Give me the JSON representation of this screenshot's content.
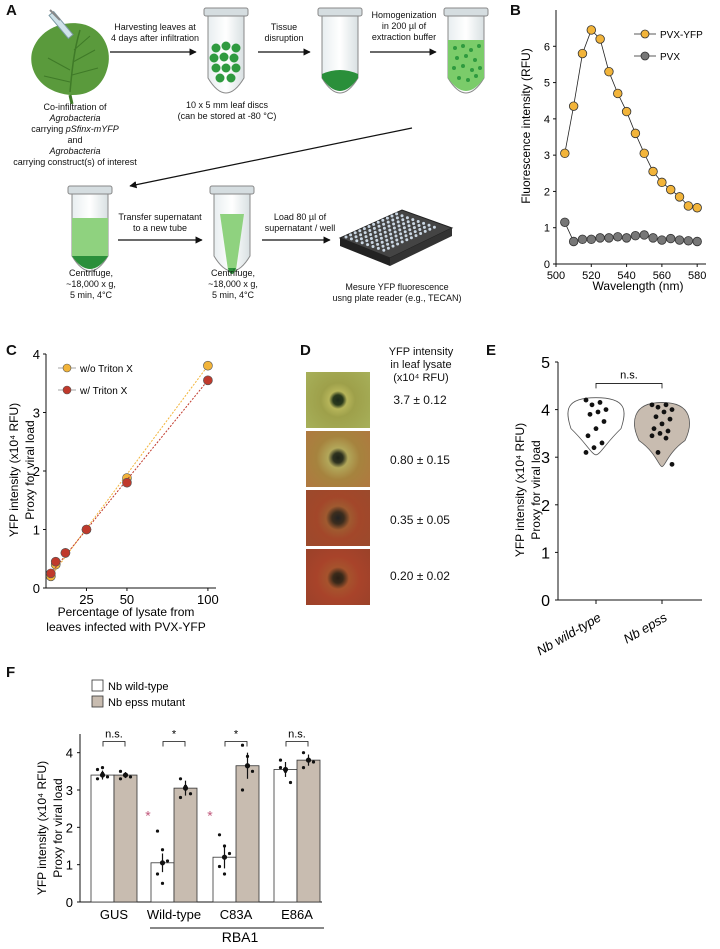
{
  "panels": {
    "a": "A",
    "b": "B",
    "c": "C",
    "d": "D",
    "e": "E",
    "f": "F"
  },
  "a": {
    "leaf_caption": [
      "Co-infiltration of",
      "Agrobacteria",
      "carrying",
      "pSfinx-mYFP",
      "and",
      "Agrobacteria",
      "carrying construct(s) of interest"
    ],
    "step1": [
      "Harvesting leaves at",
      "4 days after infiltration"
    ],
    "tube1_caption": [
      "10 x 5 mm leaf discs",
      "(can be stored at -80 °C)"
    ],
    "step2": [
      "Tissue",
      "disruption"
    ],
    "step3": [
      "Homogenization",
      "in 200 µl of",
      "extraction buffer"
    ],
    "centrifuge": [
      "Centrifuge,",
      "~18,000 x g,",
      "5 min, 4°C"
    ],
    "step4": [
      "Transfer supernatant",
      "to a new tube"
    ],
    "step5": [
      "Load 80 µl of",
      "supernatant / well"
    ],
    "plate_caption": [
      "Mesure YFP fluorescence",
      "usng plate reader (e.g., TECAN)"
    ]
  },
  "b": {
    "ylabel": "Fluorescence intensity (RFU)",
    "xlabel": "Wavelength (nm)",
    "legend": [
      "PVX-YFP",
      "PVX"
    ],
    "yticks": [
      "0",
      "1",
      "2",
      "3",
      "4",
      "5",
      "6"
    ],
    "xticks": [
      "500",
      "520",
      "540",
      "560",
      "580"
    ]
  },
  "c": {
    "ylabel1": "YFP  intensity  (x10⁴ RFU)",
    "ylabel2": "Proxy for viral load",
    "xlabel1": "Percentage of lysate from",
    "xlabel2": "leaves infected with PVX-YFP",
    "legend": [
      "w/o Triton X",
      "w/  Triton X"
    ],
    "yticks": [
      "0",
      "1",
      "2",
      "3",
      "4"
    ],
    "xticks": [
      "25",
      "50",
      "100"
    ]
  },
  "d": {
    "header": [
      "YFP intensity",
      "in leaf lysate",
      "(x10⁴ RFU)"
    ],
    "values": [
      "3.7  ± 0.12",
      "0.80 ±  0.15",
      "0.35 ± 0.05",
      "0.20 ± 0.02"
    ]
  },
  "e": {
    "ylabel1": "YFP  intensity  (x10⁴ RFU)",
    "ylabel2": "Proxy for viral load",
    "yticks": [
      "0",
      "1",
      "2",
      "3",
      "4",
      "5"
    ],
    "xticks": [
      "Nb wild-type",
      "Nb epss"
    ],
    "sig": "n.s."
  },
  "f": {
    "legend": [
      "Nb wild-type",
      "Nb epss mutant"
    ],
    "ylabel1": "YFP  intensity (x10⁴ RFU)",
    "ylabel2": "Proxy for viral load",
    "yticks": [
      "0",
      "1",
      "2",
      "3",
      "4"
    ],
    "groups": [
      "GUS",
      "Wild-type",
      "C83A",
      "E86A"
    ],
    "sig": [
      "n.s.",
      "*",
      "*",
      "n.s."
    ],
    "group_label": "RBA1"
  },
  "chart_data": [
    {
      "type": "line",
      "xlabel": "Wavelength (nm)",
      "ylabel": "Fluorescence intensity (RFU)",
      "xlim": [
        500,
        585
      ],
      "ylim": [
        0,
        7
      ],
      "series": [
        {
          "name": "PVX-YFP",
          "color": "#f2b43a",
          "x": [
            505,
            510,
            515,
            520,
            525,
            530,
            535,
            540,
            545,
            550,
            555,
            560,
            565,
            570,
            575,
            580
          ],
          "y": [
            3.05,
            4.35,
            5.8,
            6.45,
            6.2,
            5.3,
            4.7,
            4.2,
            3.6,
            3.05,
            2.55,
            2.25,
            2.05,
            1.85,
            1.6,
            1.55
          ]
        },
        {
          "name": "PVX",
          "color": "#777777",
          "x": [
            505,
            510,
            515,
            520,
            525,
            530,
            535,
            540,
            545,
            550,
            555,
            560,
            565,
            570,
            575,
            580
          ],
          "y": [
            1.15,
            0.62,
            0.68,
            0.68,
            0.72,
            0.72,
            0.75,
            0.72,
            0.78,
            0.8,
            0.72,
            0.66,
            0.7,
            0.66,
            0.64,
            0.62
          ]
        }
      ]
    },
    {
      "type": "scatter",
      "xlabel": "Percentage of lysate from leaves infected with PVX-YFP",
      "ylabel": "YFP intensity (x10⁴ RFU)",
      "xlim": [
        0,
        105
      ],
      "ylim": [
        0,
        4
      ],
      "series": [
        {
          "name": "w/o Triton X",
          "color": "#f2b43a",
          "x": [
            3,
            6,
            12,
            25,
            50,
            100
          ],
          "y": [
            0.2,
            0.4,
            0.6,
            1.0,
            1.88,
            3.8
          ]
        },
        {
          "name": "w/  Triton X",
          "color": "#c0392b",
          "x": [
            3,
            6,
            12,
            25,
            50,
            100
          ],
          "y": [
            0.25,
            0.45,
            0.6,
            1.0,
            1.8,
            3.55
          ]
        }
      ]
    },
    {
      "type": "scatter",
      "categories": [
        "Nb wild-type",
        "Nb epss"
      ],
      "ylabel": "YFP intensity (x10⁴ RFU)",
      "ylim": [
        0,
        5
      ],
      "series": [
        {
          "name": "Nb wild-type",
          "values": [
            4.2,
            4.15,
            4.1,
            4.0,
            3.95,
            3.9,
            3.75,
            3.6,
            3.45,
            3.3,
            3.2,
            3.1
          ]
        },
        {
          "name": "Nb epss",
          "values": [
            4.1,
            4.1,
            4.05,
            4.0,
            3.95,
            3.85,
            3.8,
            3.7,
            3.6,
            3.55,
            3.5,
            3.45,
            3.4,
            3.1,
            2.85
          ]
        }
      ]
    },
    {
      "type": "bar",
      "categories": [
        "GUS",
        "Wild-type",
        "C83A",
        "E86A"
      ],
      "ylabel": "YFP intensity (x10⁴ RFU)",
      "ylim": [
        0,
        4.5
      ],
      "series": [
        {
          "name": "Nb wild-type",
          "values": [
            3.4,
            1.05,
            1.2,
            3.55
          ],
          "err": [
            0.12,
            0.25,
            0.3,
            0.2
          ],
          "points": [
            [
              3.55,
              3.45,
              3.35,
              3.3,
              3.6
            ],
            [
              1.9,
              1.4,
              1.1,
              0.75,
              0.5
            ],
            [
              1.8,
              1.5,
              1.3,
              0.95,
              0.75
            ],
            [
              3.8,
              3.5,
              3.2,
              3.6
            ]
          ]
        },
        {
          "name": "Nb epss mutant",
          "values": [
            3.4,
            3.05,
            3.65,
            3.8
          ],
          "err": [
            0.08,
            0.2,
            0.35,
            0.15
          ],
          "points": [
            [
              3.5,
              3.4,
              3.35,
              3.3
            ],
            [
              3.3,
              3.1,
              2.9,
              2.8
            ],
            [
              4.2,
              3.9,
              3.5,
              3.0
            ],
            [
              4.0,
              3.8,
              3.75,
              3.6
            ]
          ]
        }
      ]
    }
  ]
}
